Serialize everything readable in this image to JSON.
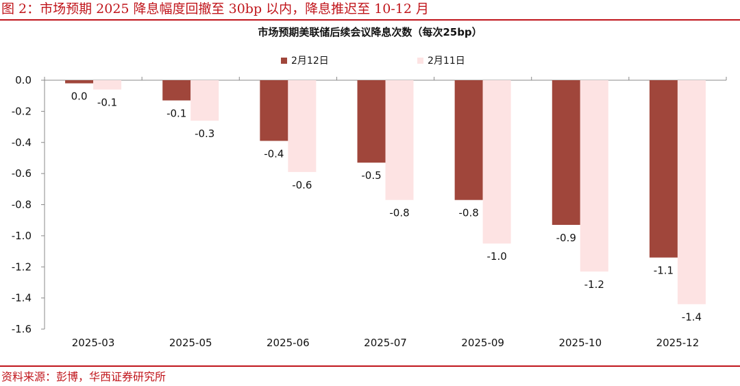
{
  "header": {
    "figure_title": "图 2：市场预期 2025 降息幅度回撤至 30bp 以内，降息推迟至 10-12 月"
  },
  "footer": {
    "source": "资料来源：彭博，华西证券研究所"
  },
  "colors": {
    "accent": "#c0151b",
    "series_feb12": "#a0463b",
    "series_feb11": "#fde3e3"
  },
  "chart_data": {
    "type": "bar",
    "title": "市场预期美联储后续会议降息次数（每次25bp）",
    "categories": [
      "2025-03",
      "2025-05",
      "2025-06",
      "2025-07",
      "2025-09",
      "2025-10",
      "2025-12"
    ],
    "series": [
      {
        "name": "2月12日",
        "values": [
          -0.02,
          -0.13,
          -0.39,
          -0.53,
          -0.77,
          -0.93,
          -1.14
        ],
        "labels": [
          "0.0",
          "-0.1",
          "-0.4",
          "-0.5",
          "-0.8",
          "-0.9",
          "-1.1"
        ]
      },
      {
        "name": "2月11日",
        "values": [
          -0.06,
          -0.26,
          -0.59,
          -0.77,
          -1.05,
          -1.23,
          -1.44
        ],
        "labels": [
          "-0.1",
          "-0.3",
          "-0.6",
          "-0.8",
          "-1.0",
          "-1.2",
          "-1.4"
        ]
      }
    ],
    "ylim": [
      -1.6,
      0.0
    ],
    "yticks": [
      "0.0",
      "-0.2",
      "-0.4",
      "-0.6",
      "-0.8",
      "-1.0",
      "-1.2",
      "-1.4",
      "-1.6"
    ],
    "xlabel": "",
    "ylabel": "",
    "legend": "top-center",
    "grid": false
  }
}
